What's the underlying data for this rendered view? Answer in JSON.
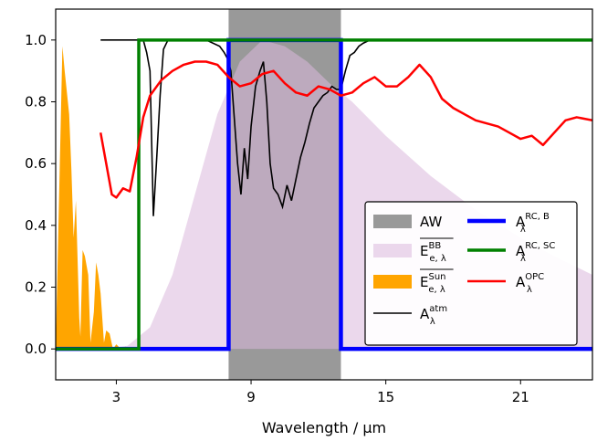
{
  "chart_data": {
    "type": "line",
    "xlabel": "Wavelength / µm",
    "ylabel": "",
    "xlim": [
      0.3,
      24.2
    ],
    "ylim": [
      -0.1,
      1.1
    ],
    "x_ticks": [
      3,
      9,
      15,
      21
    ],
    "x_tick_labels": [
      "3",
      "9",
      "15",
      "21"
    ],
    "y_ticks": [
      0.0,
      0.2,
      0.4,
      0.6,
      0.8,
      1.0
    ],
    "y_tick_labels": [
      "0.0",
      "0.2",
      "0.4",
      "0.6",
      "0.8",
      "1.0"
    ],
    "grid": false,
    "legend_position": "lower-right",
    "colors": {
      "aw": "#999999",
      "bb": "#dab8dd",
      "sun": "#ffa500",
      "atm": "#000000",
      "rc_b": "#0000ff",
      "rc_sc": "#008000",
      "opc": "#ff0000"
    },
    "atmospheric_window": {
      "label": "AW",
      "x_range": [
        8.0,
        13.0
      ]
    },
    "series": [
      {
        "name": "E_BB",
        "kind": "area",
        "x": [
          0.3,
          2.5,
          3.5,
          4.5,
          5.5,
          6.5,
          7.5,
          8.5,
          9.5,
          10.5,
          11.5,
          12.5,
          13.5,
          15,
          17,
          19,
          21,
          22.5,
          24.2
        ],
        "y": [
          0.0,
          0.0,
          0.01,
          0.07,
          0.24,
          0.5,
          0.76,
          0.93,
          1.0,
          0.98,
          0.93,
          0.86,
          0.8,
          0.69,
          0.56,
          0.45,
          0.36,
          0.3,
          0.24
        ]
      },
      {
        "name": "E_Sun",
        "kind": "area",
        "x": [
          0.3,
          0.5,
          0.6,
          0.7,
          0.9,
          1.0,
          1.1,
          1.2,
          1.35,
          1.4,
          1.5,
          1.6,
          1.75,
          1.85,
          2.0,
          2.1,
          2.2,
          2.3,
          2.45,
          2.55,
          2.7,
          2.85,
          3.0,
          3.2,
          3.4,
          3.6,
          4.0
        ],
        "y": [
          0.0,
          0.65,
          0.98,
          0.9,
          0.76,
          0.58,
          0.36,
          0.48,
          0.1,
          0.04,
          0.32,
          0.3,
          0.24,
          0.02,
          0.12,
          0.28,
          0.24,
          0.18,
          0.02,
          0.06,
          0.05,
          0.0,
          0.015,
          0.0,
          0.007,
          0.0,
          0.0
        ]
      },
      {
        "name": "A_atm",
        "kind": "line",
        "x": [
          2.3,
          3.8,
          4.2,
          4.35,
          4.5,
          4.65,
          4.8,
          4.95,
          5.1,
          5.3,
          5.5,
          7.0,
          7.6,
          7.8,
          7.95,
          8.1,
          8.25,
          8.4,
          8.55,
          8.7,
          8.85,
          9.0,
          9.2,
          9.4,
          9.55,
          9.7,
          9.85,
          10.0,
          10.2,
          10.4,
          10.6,
          10.8,
          11.0,
          11.2,
          11.4,
          11.6,
          11.8,
          12.0,
          12.2,
          12.4,
          12.6,
          12.8,
          13.0,
          13.2,
          13.4,
          13.6,
          13.8,
          14.0,
          14.3,
          14.6,
          24.2
        ],
        "y": [
          1.0,
          1.0,
          1.0,
          0.96,
          0.9,
          0.43,
          0.62,
          0.82,
          0.97,
          1.0,
          1.0,
          1.0,
          0.98,
          0.96,
          0.94,
          0.9,
          0.75,
          0.6,
          0.5,
          0.65,
          0.55,
          0.72,
          0.85,
          0.9,
          0.93,
          0.8,
          0.6,
          0.52,
          0.5,
          0.46,
          0.53,
          0.48,
          0.55,
          0.62,
          0.67,
          0.73,
          0.78,
          0.8,
          0.82,
          0.83,
          0.85,
          0.84,
          0.84,
          0.9,
          0.95,
          0.96,
          0.98,
          0.99,
          1.0,
          1.0,
          1.0
        ]
      },
      {
        "name": "A_RC,B",
        "kind": "line",
        "x": [
          0.3,
          8.0,
          8.0,
          13.0,
          13.0,
          24.2
        ],
        "y": [
          0.0,
          0.0,
          1.0,
          1.0,
          0.0,
          0.0
        ]
      },
      {
        "name": "A_RC,SC",
        "kind": "line",
        "x": [
          0.3,
          4.0,
          4.0,
          24.2
        ],
        "y": [
          0.0,
          0.0,
          1.0,
          1.0
        ]
      },
      {
        "name": "A_OPC",
        "kind": "line",
        "x": [
          2.3,
          2.5,
          2.8,
          3.0,
          3.3,
          3.6,
          3.9,
          4.2,
          4.5,
          5.0,
          5.5,
          6.0,
          6.5,
          7.0,
          7.5,
          8.0,
          8.5,
          9.0,
          9.5,
          10.0,
          10.5,
          11.0,
          11.5,
          12.0,
          12.5,
          13.0,
          13.5,
          14.0,
          14.5,
          15.0,
          15.5,
          16.0,
          16.5,
          17.0,
          17.5,
          18.0,
          18.5,
          19.0,
          19.5,
          20.0,
          20.5,
          21.0,
          21.5,
          22.0,
          22.5,
          23.0,
          23.5,
          24.2
        ],
        "y": [
          0.7,
          0.62,
          0.5,
          0.49,
          0.52,
          0.51,
          0.62,
          0.75,
          0.82,
          0.87,
          0.9,
          0.92,
          0.93,
          0.93,
          0.92,
          0.88,
          0.85,
          0.86,
          0.89,
          0.9,
          0.86,
          0.83,
          0.82,
          0.85,
          0.84,
          0.82,
          0.83,
          0.86,
          0.88,
          0.85,
          0.85,
          0.88,
          0.92,
          0.88,
          0.81,
          0.78,
          0.76,
          0.74,
          0.73,
          0.72,
          0.7,
          0.68,
          0.69,
          0.66,
          0.7,
          0.74,
          0.75,
          0.74
        ]
      }
    ],
    "legend": [
      {
        "key": "aw",
        "label": "AW"
      },
      {
        "key": "bb",
        "base": "E",
        "sub": "e, λ",
        "sup": "BB",
        "overline": true
      },
      {
        "key": "sun",
        "base": "E",
        "sub": "e, λ",
        "sup": "Sun",
        "overline": true
      },
      {
        "key": "atm",
        "base": "A",
        "sub": "λ",
        "sup": "atm"
      },
      {
        "key": "rc_b",
        "base": "A",
        "sub": "λ",
        "sup": "RC, B"
      },
      {
        "key": "rc_sc",
        "base": "A",
        "sub": "λ",
        "sup": "RC, SC"
      },
      {
        "key": "opc",
        "base": "A",
        "sub": "λ",
        "sup": "OPC"
      }
    ]
  }
}
